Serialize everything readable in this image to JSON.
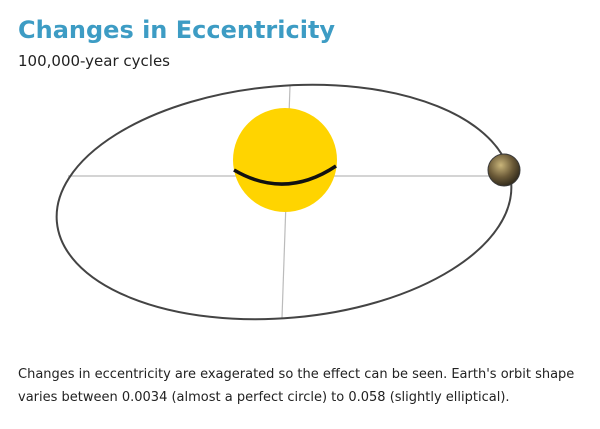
{
  "header": {
    "title": "Changes in Eccentricity",
    "subtitle": "100,000-year cycles"
  },
  "diagram": {
    "sun_color": "#ffd400",
    "sun_band_color": "#111111",
    "orbit_color": "#444444",
    "axis_color": "#bbbbbb",
    "earth_color": "#5a4a30"
  },
  "caption": {
    "text": "Changes in eccentricity are exagerated so the effect can be seen. Earth's orbit shape varies between 0.0034 (almost a perfect circle) to 0.058 (slightly elliptical)."
  }
}
